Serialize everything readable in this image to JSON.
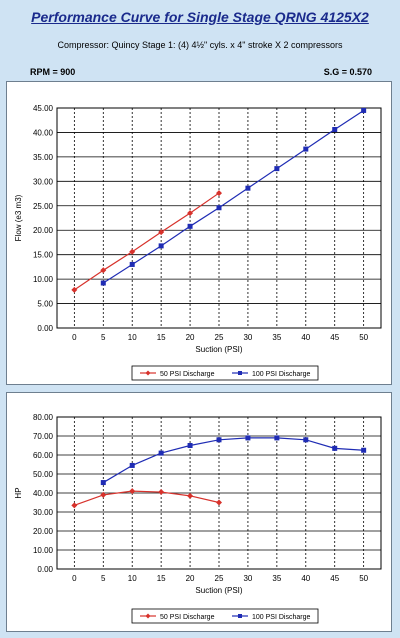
{
  "header": {
    "title": "Performance Curve for Single Stage QRNG 4125X2",
    "subtitle": "Compressor: Quincy Stage 1: (4) 4½\" cyls. x 4\" stroke X 2 compressors",
    "rpm": "RPM = 900",
    "sg": "S.G = 0.570"
  },
  "colors": {
    "series_50": "#d7322c",
    "series_100": "#1f2cb4",
    "grid": "#000000",
    "background": "#cfe3f3"
  },
  "chart_data": [
    {
      "type": "line",
      "title": "",
      "xlabel": "Suction (PSI)",
      "ylabel": "Flow (e3 m3)",
      "x_ticks": [
        0,
        5,
        10,
        15,
        20,
        25,
        30,
        35,
        40,
        45,
        50
      ],
      "y_ticks": [
        "0.00",
        "5.00",
        "10.00",
        "15.00",
        "20.00",
        "25.00",
        "30.00",
        "35.00",
        "40.00",
        "45.00"
      ],
      "xlim": [
        -3,
        53
      ],
      "ylim": [
        0,
        45
      ],
      "grid": true,
      "legend_position": "bottom",
      "series": [
        {
          "name": "50 PSI Discharge",
          "x": [
            0,
            5,
            10,
            15,
            20,
            25
          ],
          "values": [
            7.8,
            11.8,
            15.6,
            19.6,
            23.5,
            27.6
          ]
        },
        {
          "name": "100 PSI Discharge",
          "x": [
            5,
            10,
            15,
            20,
            25,
            30,
            35,
            40,
            45,
            50
          ],
          "values": [
            9.2,
            13.0,
            16.8,
            20.8,
            24.6,
            28.6,
            32.6,
            36.6,
            40.6,
            44.5
          ]
        }
      ]
    },
    {
      "type": "line",
      "title": "",
      "xlabel": "Suction (PSI)",
      "ylabel": "HP",
      "x_ticks": [
        0,
        5,
        10,
        15,
        20,
        25,
        30,
        35,
        40,
        45,
        50
      ],
      "y_ticks": [
        "0.00",
        "10.00",
        "20.00",
        "30.00",
        "40.00",
        "50.00",
        "60.00",
        "70.00",
        "80.00"
      ],
      "xlim": [
        -3,
        53
      ],
      "ylim": [
        0,
        80
      ],
      "grid": true,
      "legend_position": "bottom",
      "series": [
        {
          "name": "50 PSI Discharge",
          "x": [
            0,
            5,
            10,
            15,
            20,
            25
          ],
          "values": [
            33.5,
            39.0,
            41.0,
            40.5,
            38.5,
            35.0
          ]
        },
        {
          "name": "100 PSI Discharge",
          "x": [
            5,
            10,
            15,
            20,
            25,
            30,
            35,
            40,
            45,
            50
          ],
          "values": [
            45.5,
            54.5,
            61.0,
            65.0,
            68.0,
            69.0,
            69.0,
            68.0,
            63.5,
            62.5
          ]
        }
      ]
    }
  ]
}
